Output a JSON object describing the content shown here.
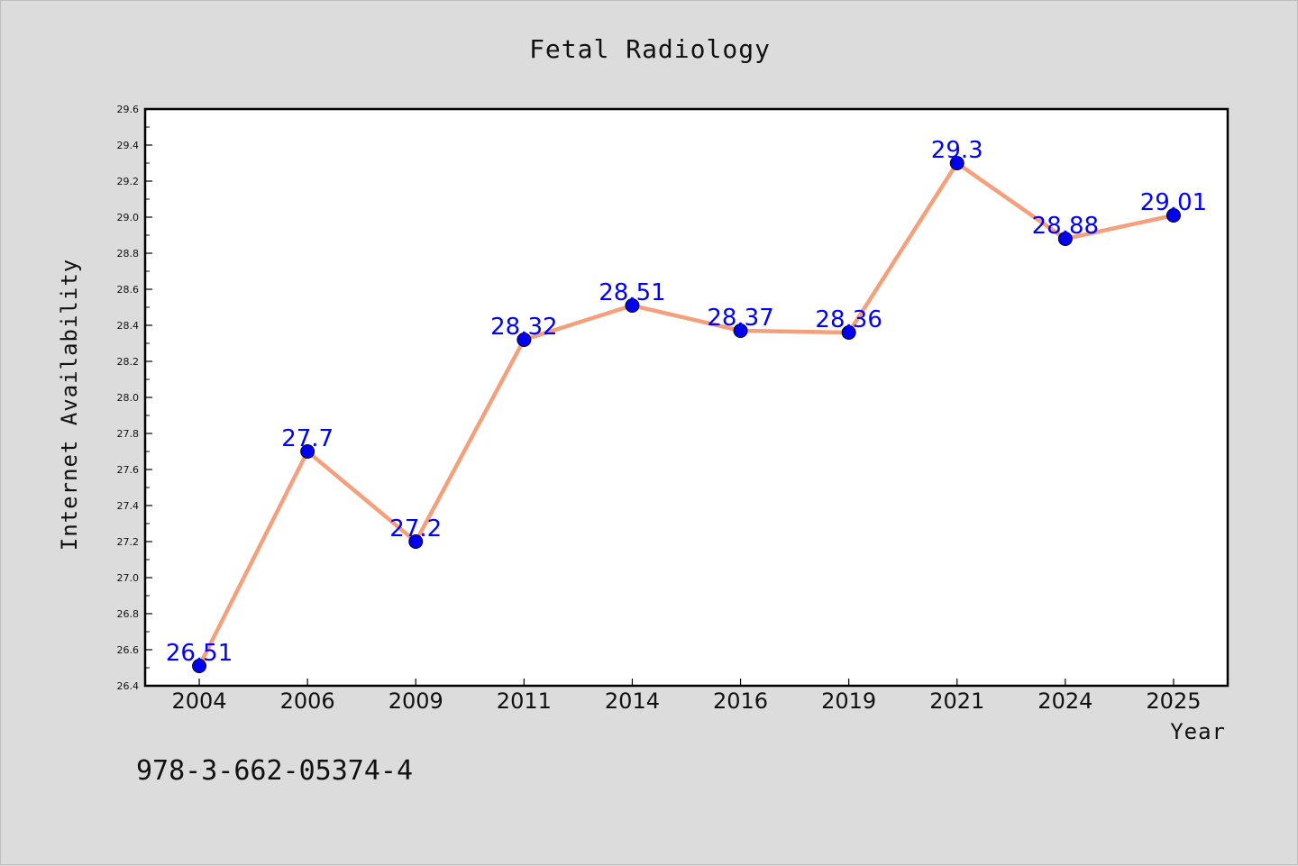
{
  "footer": {
    "code": "978-3-662-05374-4"
  },
  "chart_data": {
    "type": "line",
    "title": "Fetal Radiology",
    "xlabel": "Year",
    "ylabel": "Internet Availability",
    "categories": [
      "2004",
      "2006",
      "2009",
      "2011",
      "2014",
      "2016",
      "2019",
      "2021",
      "2024",
      "2025"
    ],
    "values": [
      26.51,
      27.7,
      27.2,
      28.32,
      28.51,
      28.37,
      28.36,
      29.3,
      28.88,
      29.01
    ],
    "data_labels": [
      "26.51",
      "27.7",
      "27.2",
      "28.32",
      "28.51",
      "28.37",
      "28.36",
      "29.3",
      "28.88",
      "29.01"
    ],
    "ylim": [
      26.4,
      29.6
    ],
    "yticks": [
      "26.4",
      "26.6",
      "26.8",
      "27.0",
      "27.2",
      "27.4",
      "27.6",
      "27.8",
      "28.0",
      "28.2",
      "28.4",
      "28.6",
      "28.8",
      "29.0",
      "29.2",
      "29.4",
      "29.6"
    ],
    "line_color": "#f4a07c",
    "marker_color": "#0000ee",
    "label_color": "#0000ff",
    "grid": false,
    "legend": "none"
  }
}
